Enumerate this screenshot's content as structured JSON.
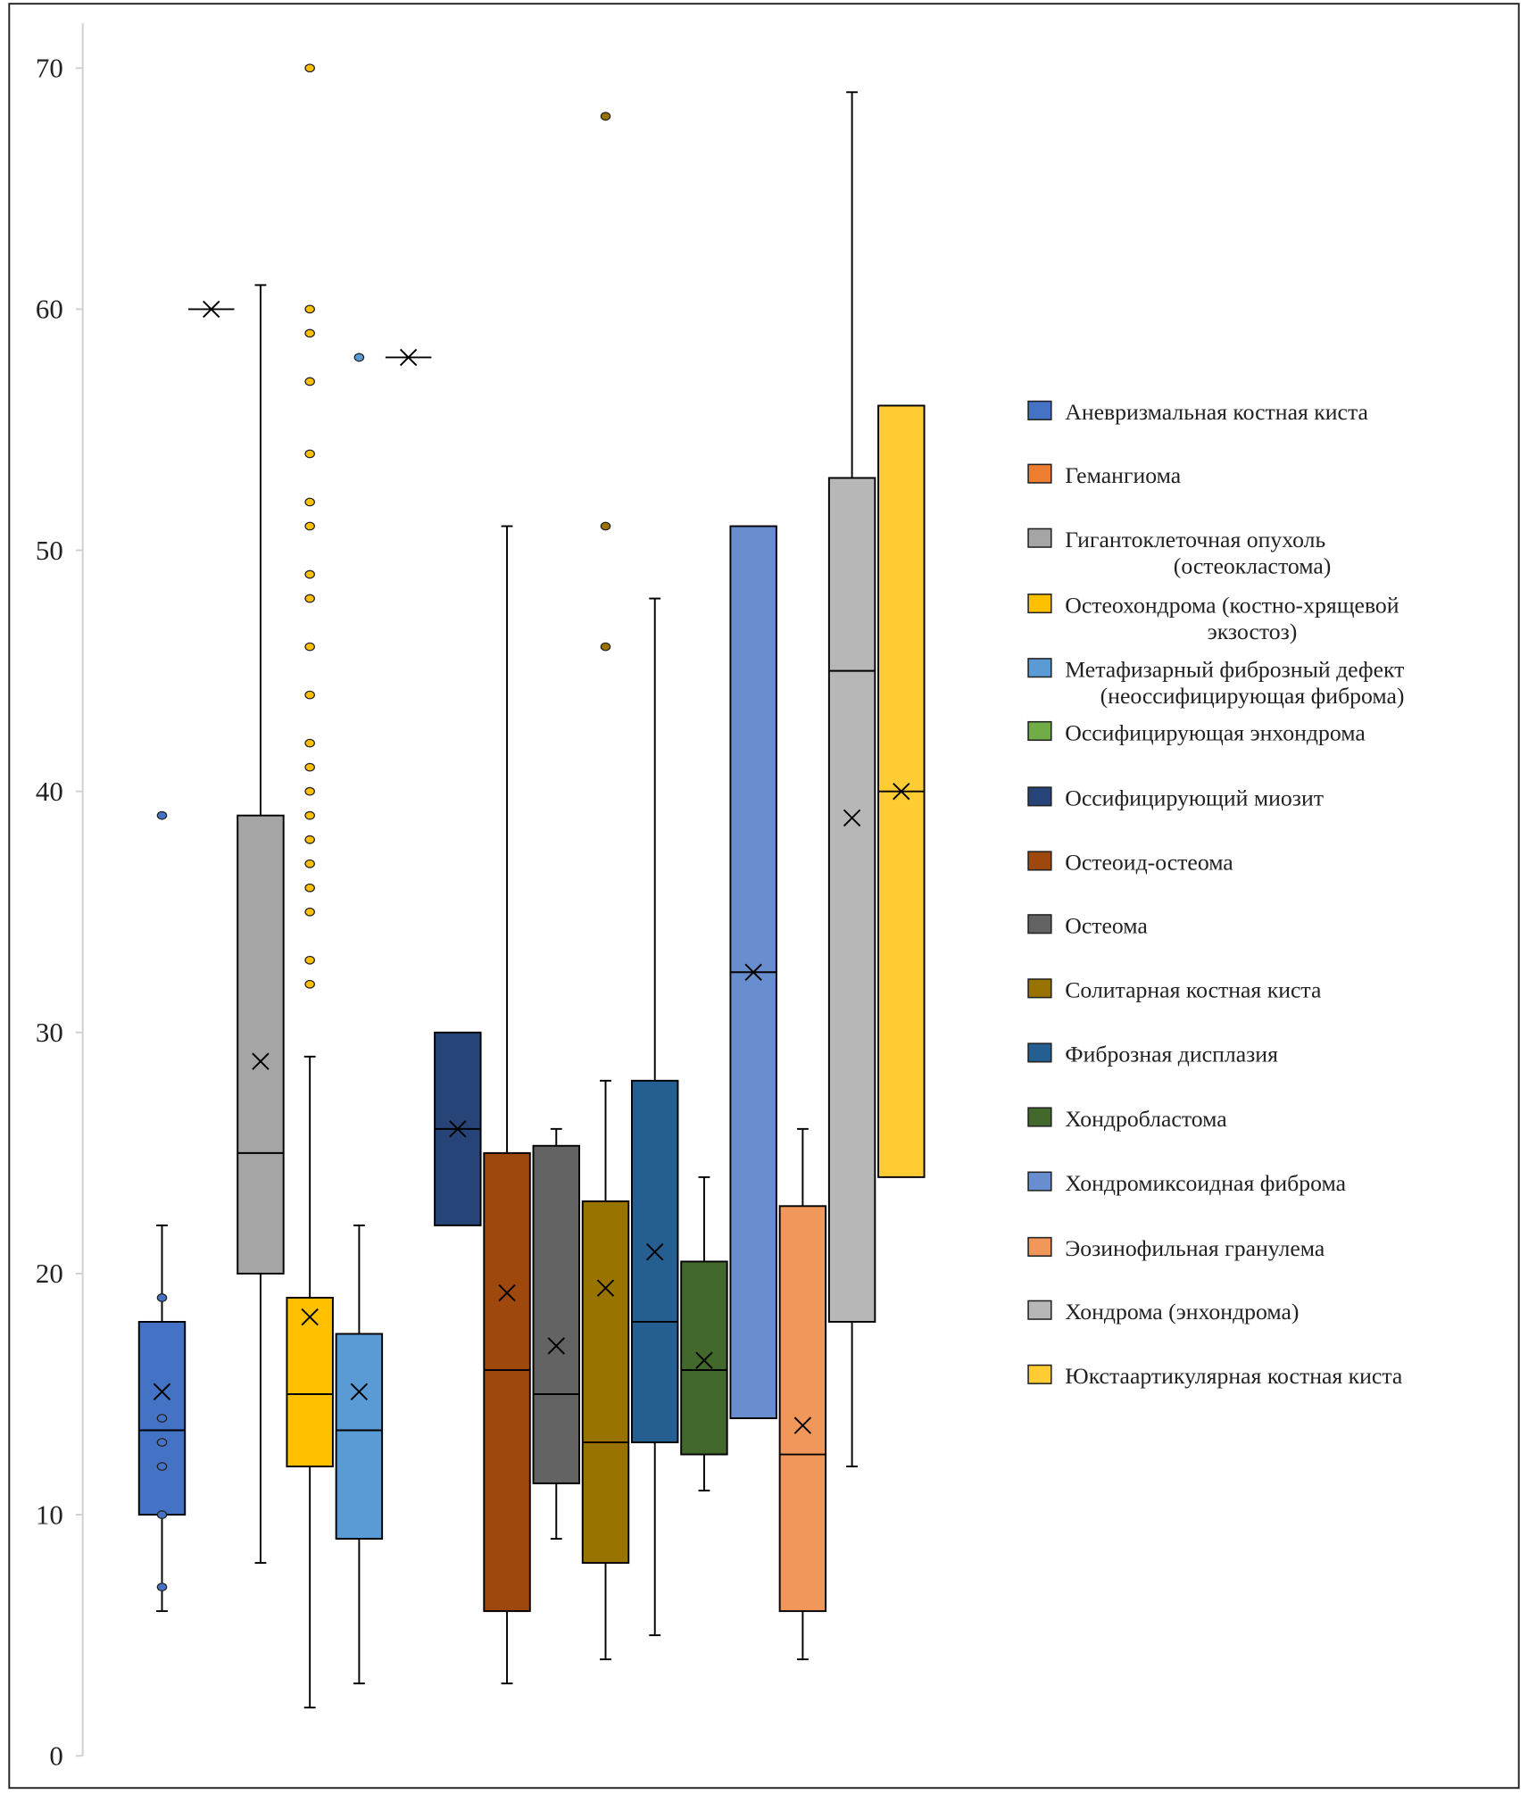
{
  "chart_data": {
    "type": "box",
    "title": "",
    "xlabel": "",
    "ylabel": "",
    "ylim": [
      0,
      70
    ],
    "yticks": [
      0,
      10,
      20,
      30,
      40,
      50,
      60,
      70
    ],
    "grid": false,
    "legend_position": "right",
    "series": [
      {
        "name": "Аневризмальная костная киста",
        "name_lines": [
          "Аневризмальная костная киста"
        ],
        "color": "#4472C4",
        "min": 6,
        "q1": 10,
        "median": 13.5,
        "q3": 18,
        "max": 22,
        "mean": 15.1,
        "outliers": [
          39,
          19,
          14,
          13,
          12,
          10,
          7
        ]
      },
      {
        "name": "Гемангиома",
        "name_lines": [
          "Гемангиома"
        ],
        "color": "#ED7D31",
        "min": 60,
        "q1": 60,
        "median": 60,
        "q3": 60,
        "max": 60,
        "mean": 60,
        "outliers": []
      },
      {
        "name": "Гигантоклеточная опухоль (остеокластома)",
        "name_lines": [
          "Гигантоклеточная опухоль",
          "(остеокластома)"
        ],
        "color": "#A5A5A5",
        "min": 8,
        "q1": 20,
        "median": 25,
        "q3": 39,
        "max": 61,
        "mean": 28.8,
        "outliers": []
      },
      {
        "name": "Остеохондрома (костно-хрящевой экзостоз)",
        "name_lines": [
          "Остеохондрома (костно-хрящевой",
          "экзостоз)"
        ],
        "color": "#FFC000",
        "min": 2,
        "q1": 12,
        "median": 15,
        "q3": 19,
        "max": 29,
        "mean": 18.2,
        "outliers": [
          70,
          60,
          59,
          57,
          54,
          52,
          51,
          49,
          48,
          46,
          44,
          42,
          41,
          40,
          39,
          38,
          37,
          36,
          35,
          33,
          32
        ]
      },
      {
        "name": "Метафизарный фиброзный дефект (неоссифицирующая фиброма)",
        "name_lines": [
          "Метафизарный фиброзный дефект",
          "(неоссифицирующая  фиброма)"
        ],
        "color": "#5B9BD5",
        "min": 3,
        "q1": 9,
        "median": 13.5,
        "q3": 17.5,
        "max": 22,
        "mean": 15.1,
        "outliers": [
          58
        ]
      },
      {
        "name": "Оссифицирующая энхондрома",
        "name_lines": [
          "Оссифицирующая энхондрома"
        ],
        "color": "#70AD47",
        "min": 58,
        "q1": 58,
        "median": 58,
        "q3": 58,
        "max": 58,
        "mean": 58,
        "outliers": []
      },
      {
        "name": "Оссифицирующий миозит",
        "name_lines": [
          "Оссифицирующий миозит"
        ],
        "color": "#264478",
        "min": 22,
        "q1": 22,
        "median": 26,
        "q3": 30,
        "max": 30,
        "mean": 26,
        "outliers": []
      },
      {
        "name": "Остеоид-остеома",
        "name_lines": [
          "Остеоид-остеома"
        ],
        "color": "#9E480E",
        "min": 3,
        "q1": 6,
        "median": 16,
        "q3": 25,
        "max": 51,
        "mean": 19.2,
        "outliers": []
      },
      {
        "name": "Остеома",
        "name_lines": [
          "Остеома"
        ],
        "color": "#636363",
        "min": 9,
        "q1": 11.3,
        "median": 15,
        "q3": 25.3,
        "max": 26,
        "mean": 17,
        "outliers": []
      },
      {
        "name": "Солитарная костная киста",
        "name_lines": [
          "Солитарная костная киста"
        ],
        "color": "#997300",
        "min": 4,
        "q1": 8,
        "median": 13,
        "q3": 23,
        "max": 28,
        "mean": 19.4,
        "outliers": [
          68,
          51,
          46
        ]
      },
      {
        "name": "Фиброзная дисплазия",
        "name_lines": [
          "Фиброзная дисплазия"
        ],
        "color": "#255E91",
        "min": 5,
        "q1": 13,
        "median": 18,
        "q3": 28,
        "max": 48,
        "mean": 20.9,
        "outliers": []
      },
      {
        "name": "Хондробластома",
        "name_lines": [
          "Хондробластома"
        ],
        "color": "#43682B",
        "min": 11,
        "q1": 12.5,
        "median": 16,
        "q3": 20.5,
        "max": 24,
        "mean": 16.4,
        "outliers": []
      },
      {
        "name": "Хондромиксоидная фиброма",
        "name_lines": [
          "Хондромиксоидная фиброма"
        ],
        "color": "#698ED0",
        "min": 14,
        "q1": 14,
        "median": 32.5,
        "q3": 51,
        "max": 51,
        "mean": 32.5,
        "outliers": []
      },
      {
        "name": "Эозинофильная гранулема",
        "name_lines": [
          "Эозинофильная гранулема"
        ],
        "color": "#F1975A",
        "min": 4,
        "q1": 6,
        "median": 12.5,
        "q3": 22.8,
        "max": 26,
        "mean": 13.7,
        "outliers": []
      },
      {
        "name": "Хондрома (энхондрома)",
        "name_lines": [
          "Хондрома (энхондрома)"
        ],
        "color": "#B7B7B7",
        "min": 12,
        "q1": 18,
        "median": 45,
        "q3": 53,
        "max": 69,
        "mean": 38.9,
        "outliers": []
      },
      {
        "name": "Юкстаартикулярная костная киста",
        "name_lines": [
          "Юкстаартикулярная костная киста"
        ],
        "color": "#FFCD33",
        "min": 24,
        "q1": 24,
        "median": 40,
        "q3": 56,
        "max": 56,
        "mean": 40,
        "outliers": []
      }
    ]
  }
}
